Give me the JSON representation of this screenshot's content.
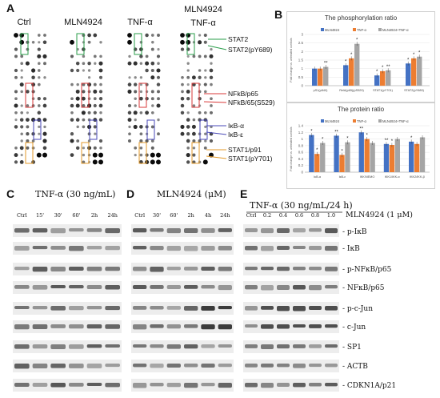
{
  "panel_A": {
    "letter": "A",
    "arrays": [
      {
        "title_lines": [
          "Ctrl"
        ]
      },
      {
        "title_lines": [
          "MLN4924"
        ]
      },
      {
        "title_lines": [
          "TNF-α"
        ]
      },
      {
        "title_lines": [
          "MLN4924",
          "TNF-α"
        ]
      }
    ],
    "annotations": [
      {
        "text": "STAT2",
        "color": "#2a9d4a"
      },
      {
        "text": "STAT2(pY689)",
        "color": "#2a9d4a"
      },
      {
        "text": "NFkB/p65",
        "color": "#d93a3a"
      },
      {
        "text": "NFkB/65(S529)",
        "color": "#d93a3a"
      },
      {
        "text": "IκB-α",
        "color": "#4a4ab8"
      },
      {
        "text": "IκB-ε",
        "color": "#4a4ab8"
      },
      {
        "text": "STAT1/p91",
        "color": "#e39a2a"
      },
      {
        "text": "STAT1(pY701)",
        "color": "#e39a2a"
      }
    ]
  },
  "panel_B": {
    "letter": "B",
    "chart_data": [
      {
        "type": "bar",
        "title": "The phosphorylation ratio",
        "ylabel": "Fold change vs. untreated controls",
        "ylim": [
          0,
          3
        ],
        "yticks": [
          0,
          0.5,
          1,
          1.5,
          2,
          2.5,
          3
        ],
        "categories": [
          "pS1(p840)",
          "RelA(p65)(pS529)",
          "STAT1(pY701)",
          "STAT2(pY689)"
        ],
        "series": [
          {
            "name": "MLN4924",
            "color": "#4472c4",
            "values": [
              1.0,
              1.2,
              0.6,
              1.3
            ]
          },
          {
            "name": "TNF-α",
            "color": "#ed7d31",
            "values": [
              1.0,
              1.6,
              0.85,
              1.6
            ]
          },
          {
            "name": "MLN4924+TNF-α",
            "color": "#a5a5a5",
            "values": [
              1.1,
              2.45,
              0.9,
              1.7
            ]
          }
        ],
        "markers": [
          "",
          "",
          "**",
          "*",
          "*",
          "*",
          "*",
          "*",
          "**",
          "*",
          "*",
          "*"
        ]
      },
      {
        "type": "bar",
        "title": "The protein ratio",
        "ylabel": "Fold change vs. untreated controls",
        "ylim": [
          0,
          1.4
        ],
        "yticks": [
          0,
          0.2,
          0.4,
          0.6,
          0.8,
          1,
          1.2,
          1.4
        ],
        "categories": [
          "IκB-α",
          "IκB-ε",
          "IKK/NEMO",
          "IKK1/IKK-α",
          "IKK2/IKK-β"
        ],
        "series": [
          {
            "name": "MLN4924",
            "color": "#4472c4",
            "values": [
              1.12,
              1.1,
              1.2,
              0.85,
              0.92
            ]
          },
          {
            "name": "TNF-α",
            "color": "#ed7d31",
            "values": [
              0.55,
              0.52,
              1.0,
              0.82,
              0.85
            ]
          },
          {
            "name": "MLN4924+TNF-α",
            "color": "#a5a5a5",
            "values": [
              0.88,
              0.9,
              0.88,
              1.0,
              1.05
            ]
          }
        ],
        "markers": [
          "*",
          "*",
          "*",
          "**",
          "*",
          "*",
          "**",
          "*",
          "",
          "**",
          "*",
          "",
          "*",
          "",
          ""
        ]
      }
    ]
  },
  "panel_C": {
    "letter": "C",
    "title": "TNF-α (30 ng/mL)",
    "lanes": [
      "Ctrl",
      "15'",
      "30'",
      "60'",
      "2h",
      "24h"
    ]
  },
  "panel_D": {
    "letter": "D",
    "title": "MLN4924 (μM)",
    "lanes": [
      "Ctrl",
      "30'",
      "60'",
      "2h",
      "4h",
      "24h"
    ]
  },
  "panel_E": {
    "letter": "E",
    "title": "TNF-α (30 ng/mL/24 h)",
    "subtitle": "MLN4924 (1 μM)",
    "lanes": [
      "Ctrl",
      "0.2",
      "0.4",
      "0.6",
      "0.8",
      "1.0"
    ]
  },
  "blot_rows": [
    {
      "label": "- p-IκB"
    },
    {
      "label": "- IκB"
    },
    {
      "label": "- p-NFκB/p65"
    },
    {
      "label": "- NFκB/p65"
    },
    {
      "label": "- p-c-Jun"
    },
    {
      "label": "- c-Jun"
    },
    {
      "label": "- SP1"
    },
    {
      "label": "- ACTB"
    },
    {
      "label": "- CDKN1A/p21"
    }
  ]
}
